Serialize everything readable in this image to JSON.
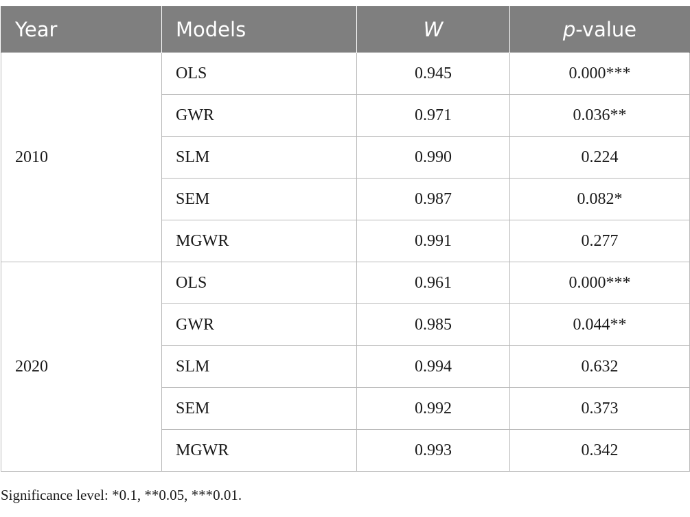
{
  "header": {
    "year": "Year",
    "models": "Models",
    "w": "W",
    "p_italic": "p",
    "p_rest": "-value"
  },
  "groups": [
    {
      "year": "2010",
      "rows": [
        {
          "model": "OLS",
          "w": "0.945",
          "p": "0.000***"
        },
        {
          "model": "GWR",
          "w": "0.971",
          "p": "0.036**"
        },
        {
          "model": "SLM",
          "w": "0.990",
          "p": "0.224"
        },
        {
          "model": "SEM",
          "w": "0.987",
          "p": "0.082*"
        },
        {
          "model": "MGWR",
          "w": "0.991",
          "p": "0.277"
        }
      ]
    },
    {
      "year": "2020",
      "rows": [
        {
          "model": "OLS",
          "w": "0.961",
          "p": "0.000***"
        },
        {
          "model": "GWR",
          "w": "0.985",
          "p": "0.044**"
        },
        {
          "model": "SLM",
          "w": "0.994",
          "p": "0.632"
        },
        {
          "model": "SEM",
          "w": "0.992",
          "p": "0.373"
        },
        {
          "model": "MGWR",
          "w": "0.993",
          "p": "0.342"
        }
      ]
    }
  ],
  "footnote": "Significance level: *0.1, **0.05, ***0.01."
}
